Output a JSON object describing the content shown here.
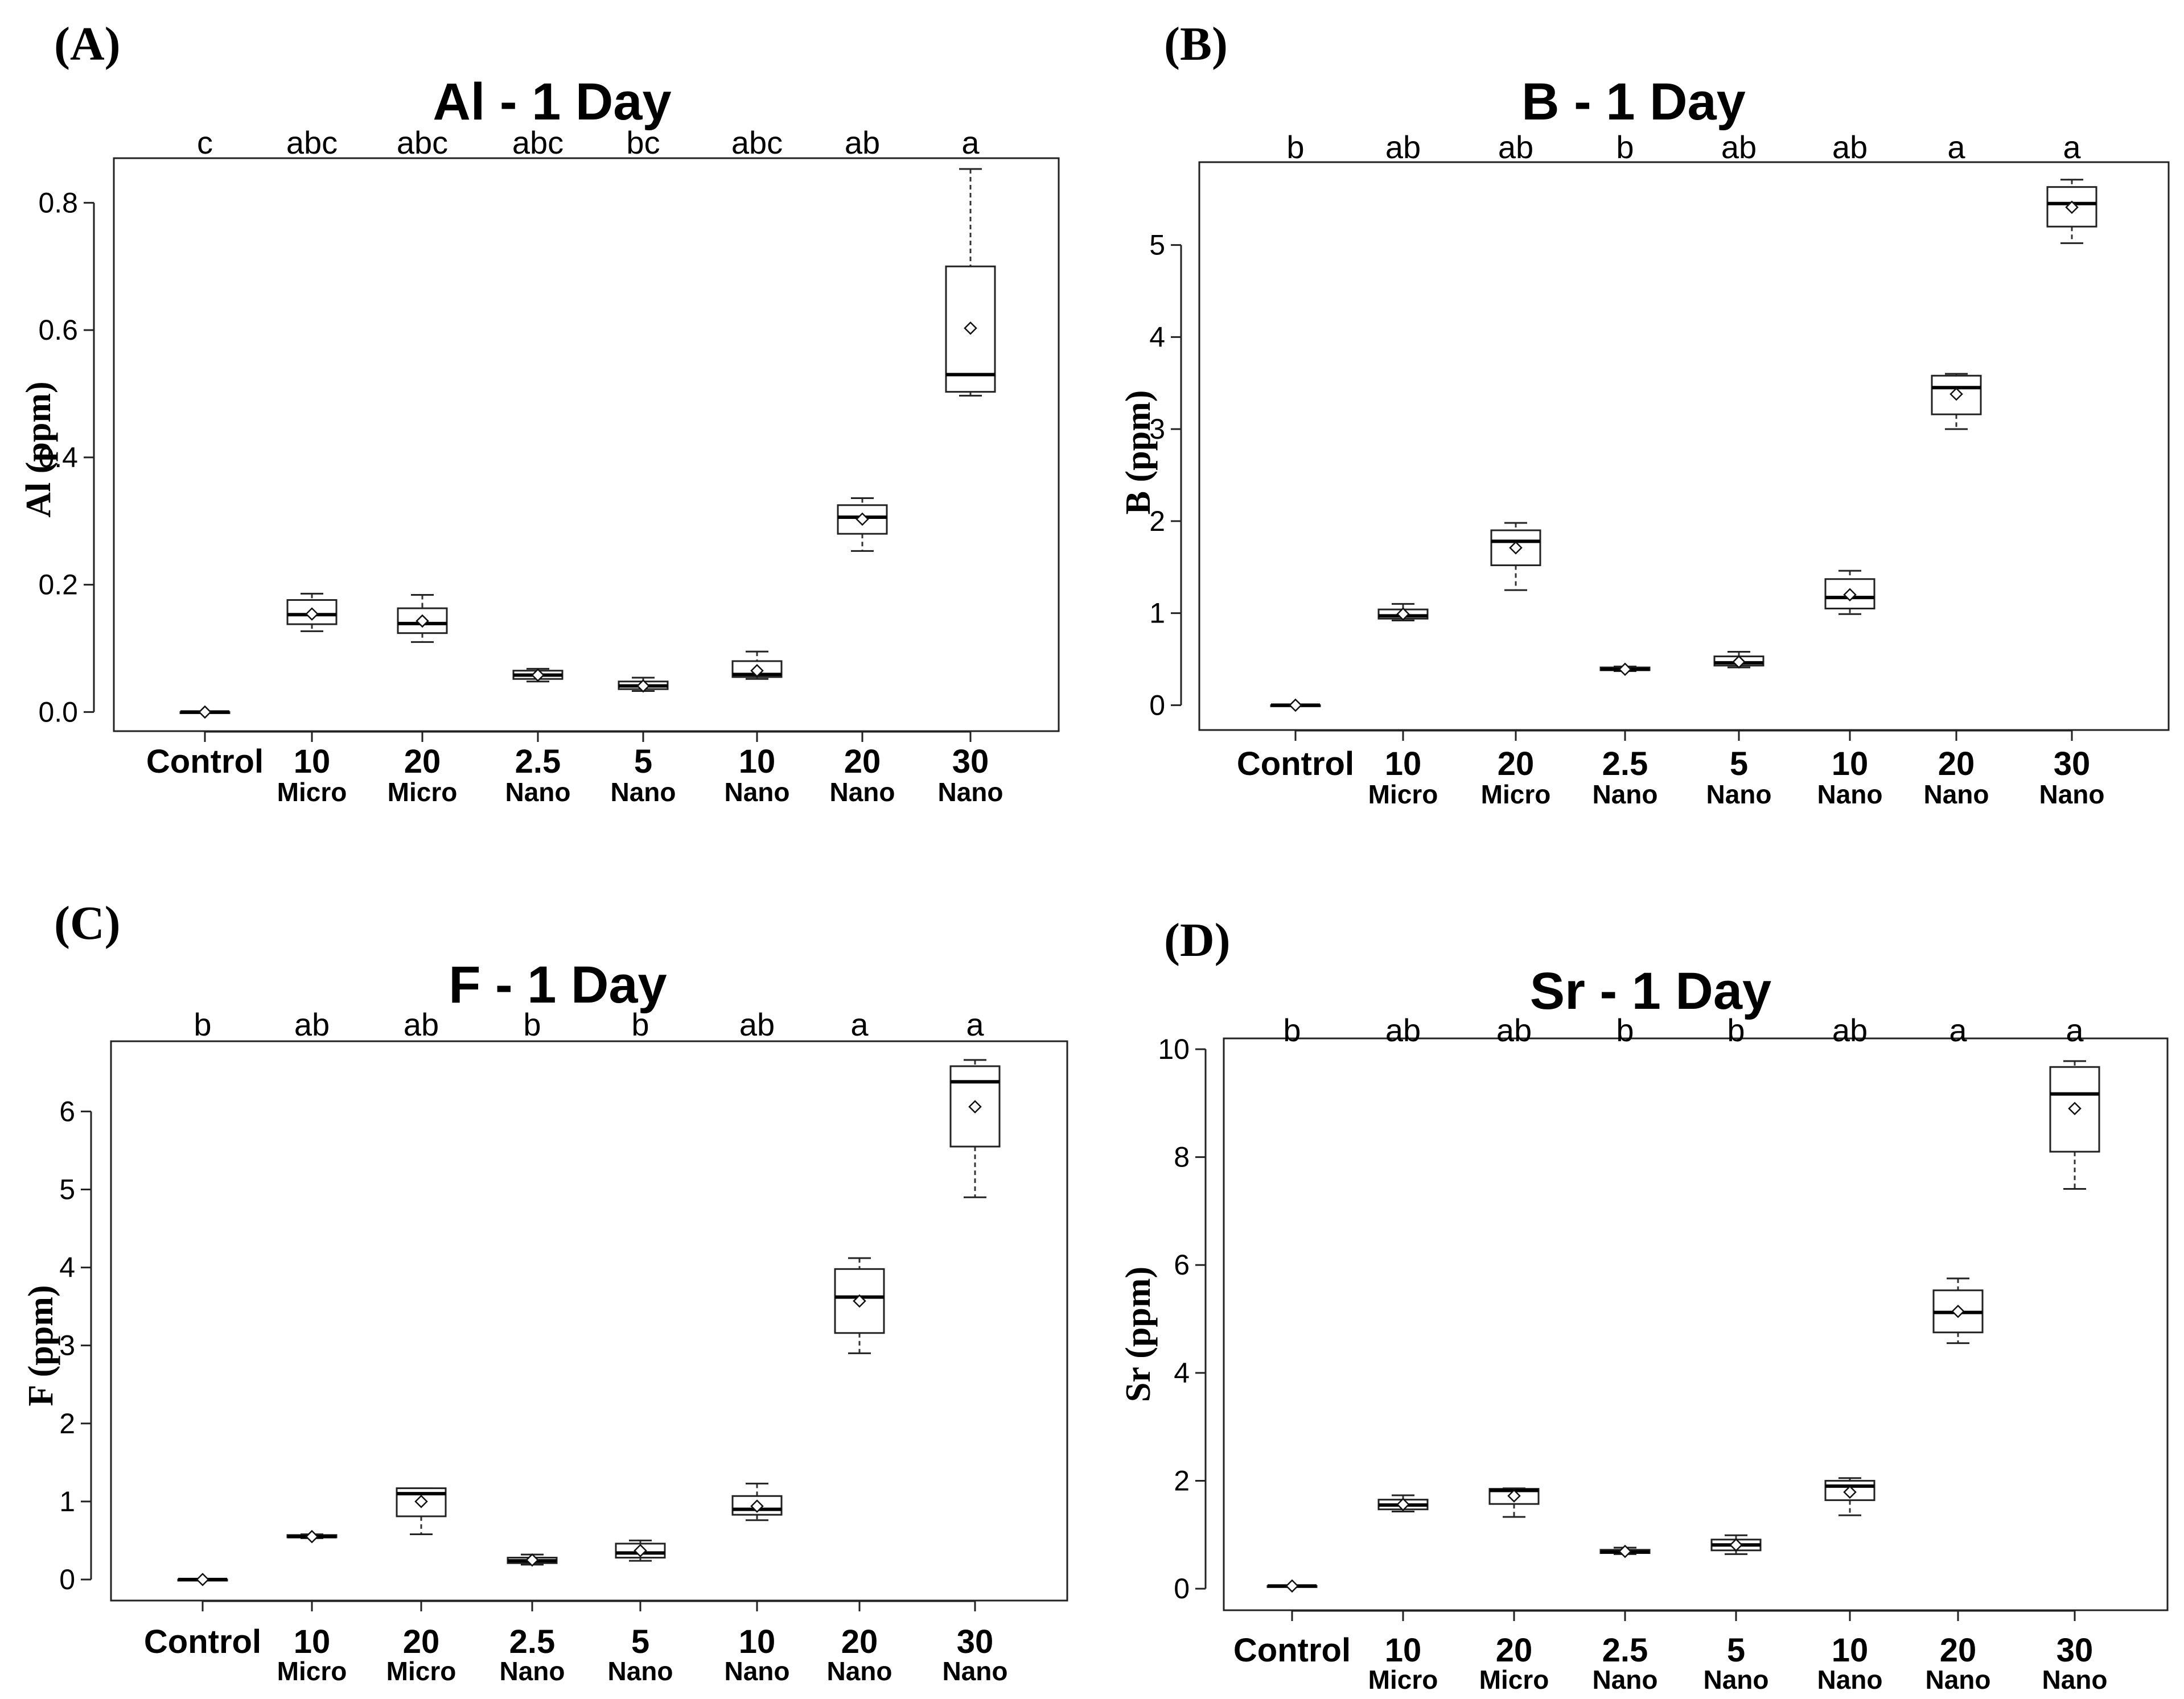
{
  "chart_data": [
    {
      "type": "box",
      "panel_label": "(A)",
      "title": "Al - 1 Day",
      "ylabel": "Al (ppm)",
      "ylim": [
        -0.03,
        0.87
      ],
      "yticks": [
        "0.0",
        "0.2",
        "0.4",
        "0.6",
        "0.8"
      ],
      "yticks_values": [
        0,
        0.2,
        0.4,
        0.6,
        0.8
      ],
      "groups": [
        {
          "line1": "Control",
          "line2": "",
          "letter": "c",
          "min": 0.0,
          "q1": 0.0,
          "median": 0.0,
          "q3": 0.0,
          "max": 0.0,
          "mean": 0.0
        },
        {
          "line1": "10",
          "line2": "Micro",
          "letter": "abc",
          "min": 0.127,
          "q1": 0.138,
          "median": 0.153,
          "q3": 0.176,
          "max": 0.186,
          "mean": 0.154
        },
        {
          "line1": "20",
          "line2": "Micro",
          "letter": "abc",
          "min": 0.11,
          "q1": 0.124,
          "median": 0.139,
          "q3": 0.163,
          "max": 0.184,
          "mean": 0.143
        },
        {
          "line1": "2.5",
          "line2": "Nano",
          "letter": "abc",
          "min": 0.048,
          "q1": 0.052,
          "median": 0.058,
          "q3": 0.065,
          "max": 0.068,
          "mean": 0.058
        },
        {
          "line1": "5",
          "line2": "Nano",
          "letter": "bc",
          "min": 0.033,
          "q1": 0.036,
          "median": 0.041,
          "q3": 0.048,
          "max": 0.054,
          "mean": 0.041
        },
        {
          "line1": "10",
          "line2": "Nano",
          "letter": "abc",
          "min": 0.052,
          "q1": 0.055,
          "median": 0.059,
          "q3": 0.08,
          "max": 0.095,
          "mean": 0.065
        },
        {
          "line1": "20",
          "line2": "Nano",
          "letter": "ab",
          "min": 0.253,
          "q1": 0.28,
          "median": 0.306,
          "q3": 0.325,
          "max": 0.336,
          "mean": 0.303
        },
        {
          "line1": "30",
          "line2": "Nano",
          "letter": "a",
          "min": 0.497,
          "q1": 0.503,
          "median": 0.53,
          "q3": 0.7,
          "max": 0.853,
          "mean": 0.603
        }
      ]
    },
    {
      "type": "box",
      "panel_label": "(B)",
      "title": "B - 1 Day",
      "ylabel": "B (ppm)",
      "ylim": [
        -0.27,
        5.9
      ],
      "yticks": [
        "0",
        "1",
        "2",
        "3",
        "4",
        "5"
      ],
      "yticks_values": [
        0,
        1,
        2,
        3,
        4,
        5
      ],
      "groups": [
        {
          "line1": "Control",
          "line2": "",
          "letter": "b",
          "min": 0.0,
          "q1": 0.0,
          "median": 0.0,
          "q3": 0.0,
          "max": 0.0,
          "mean": 0.0
        },
        {
          "line1": "10",
          "line2": "Micro",
          "letter": "ab",
          "min": 0.92,
          "q1": 0.94,
          "median": 0.97,
          "q3": 1.04,
          "max": 1.1,
          "mean": 0.99
        },
        {
          "line1": "20",
          "line2": "Micro",
          "letter": "ab",
          "min": 1.25,
          "q1": 1.52,
          "median": 1.78,
          "q3": 1.9,
          "max": 1.98,
          "mean": 1.71
        },
        {
          "line1": "2.5",
          "line2": "Nano",
          "letter": "b",
          "min": 0.37,
          "q1": 0.38,
          "median": 0.39,
          "q3": 0.41,
          "max": 0.42,
          "mean": 0.39
        },
        {
          "line1": "5",
          "line2": "Nano",
          "letter": "ab",
          "min": 0.41,
          "q1": 0.43,
          "median": 0.46,
          "q3": 0.53,
          "max": 0.58,
          "mean": 0.47
        },
        {
          "line1": "10",
          "line2": "Nano",
          "letter": "ab",
          "min": 0.99,
          "q1": 1.05,
          "median": 1.17,
          "q3": 1.37,
          "max": 1.46,
          "mean": 1.2
        },
        {
          "line1": "20",
          "line2": "Nano",
          "letter": "a",
          "min": 3.0,
          "q1": 3.16,
          "median": 3.45,
          "q3": 3.58,
          "max": 3.6,
          "mean": 3.38
        },
        {
          "line1": "30",
          "line2": "Nano",
          "letter": "a",
          "min": 5.02,
          "q1": 5.2,
          "median": 5.45,
          "q3": 5.63,
          "max": 5.71,
          "mean": 5.41
        }
      ]
    },
    {
      "type": "box",
      "panel_label": "(C)",
      "title": "F - 1 Day",
      "ylabel": "F (ppm)",
      "ylim": [
        -0.27,
        6.9
      ],
      "yticks": [
        "0",
        "1",
        "2",
        "3",
        "4",
        "5",
        "6"
      ],
      "yticks_values": [
        0,
        1,
        2,
        3,
        4,
        5,
        6
      ],
      "groups": [
        {
          "line1": "Control",
          "line2": "",
          "letter": "b",
          "min": 0.0,
          "q1": 0.0,
          "median": 0.0,
          "q3": 0.0,
          "max": 0.0,
          "mean": 0.0
        },
        {
          "line1": "10",
          "line2": "Micro",
          "letter": "ab",
          "min": 0.53,
          "q1": 0.54,
          "median": 0.55,
          "q3": 0.57,
          "max": 0.58,
          "mean": 0.55
        },
        {
          "line1": "20",
          "line2": "Micro",
          "letter": "ab",
          "min": 0.58,
          "q1": 0.81,
          "median": 1.1,
          "q3": 1.17,
          "max": 1.17,
          "mean": 1.0
        },
        {
          "line1": "2.5",
          "line2": "Nano",
          "letter": "b",
          "min": 0.19,
          "q1": 0.21,
          "median": 0.24,
          "q3": 0.28,
          "max": 0.32,
          "mean": 0.25
        },
        {
          "line1": "5",
          "line2": "Nano",
          "letter": "b",
          "min": 0.24,
          "q1": 0.28,
          "median": 0.34,
          "q3": 0.46,
          "max": 0.5,
          "mean": 0.37
        },
        {
          "line1": "10",
          "line2": "Nano",
          "letter": "ab",
          "min": 0.76,
          "q1": 0.83,
          "median": 0.9,
          "q3": 1.07,
          "max": 1.23,
          "mean": 0.94
        },
        {
          "line1": "20",
          "line2": "Nano",
          "letter": "a",
          "min": 2.9,
          "q1": 3.16,
          "median": 3.62,
          "q3": 3.98,
          "max": 4.12,
          "mean": 3.57
        },
        {
          "line1": "30",
          "line2": "Nano",
          "letter": "a",
          "min": 4.9,
          "q1": 5.55,
          "median": 6.38,
          "q3": 6.58,
          "max": 6.66,
          "mean": 6.06
        }
      ]
    },
    {
      "type": "box",
      "panel_label": "(D)",
      "title": "Sr - 1 Day",
      "ylabel": "Sr (ppm)",
      "ylim": [
        -0.4,
        10.2
      ],
      "yticks": [
        "0",
        "2",
        "4",
        "6",
        "8",
        "10"
      ],
      "yticks_values": [
        0,
        2,
        4,
        6,
        8,
        10
      ],
      "groups": [
        {
          "line1": "Control",
          "line2": "",
          "letter": "b",
          "min": 0.05,
          "q1": 0.05,
          "median": 0.05,
          "q3": 0.05,
          "max": 0.05,
          "mean": 0.05
        },
        {
          "line1": "10",
          "line2": "Micro",
          "letter": "ab",
          "min": 1.43,
          "q1": 1.47,
          "median": 1.55,
          "q3": 1.65,
          "max": 1.73,
          "mean": 1.56
        },
        {
          "line1": "20",
          "line2": "Micro",
          "letter": "ab",
          "min": 1.33,
          "q1": 1.57,
          "median": 1.82,
          "q3": 1.85,
          "max": 1.86,
          "mean": 1.72
        },
        {
          "line1": "2.5",
          "line2": "Nano",
          "letter": "b",
          "min": 0.64,
          "q1": 0.66,
          "median": 0.68,
          "q3": 0.72,
          "max": 0.76,
          "mean": 0.69
        },
        {
          "line1": "5",
          "line2": "Nano",
          "letter": "b",
          "min": 0.64,
          "q1": 0.71,
          "median": 0.81,
          "q3": 0.91,
          "max": 0.99,
          "mean": 0.81
        },
        {
          "line1": "10",
          "line2": "Nano",
          "letter": "ab",
          "min": 1.36,
          "q1": 1.64,
          "median": 1.9,
          "q3": 2.0,
          "max": 2.05,
          "mean": 1.79
        },
        {
          "line1": "20",
          "line2": "Nano",
          "letter": "a",
          "min": 4.55,
          "q1": 4.75,
          "median": 5.12,
          "q3": 5.53,
          "max": 5.75,
          "mean": 5.14
        },
        {
          "line1": "30",
          "line2": "Nano",
          "letter": "a",
          "min": 7.41,
          "q1": 8.1,
          "median": 9.17,
          "q3": 9.67,
          "max": 9.78,
          "mean": 8.9
        }
      ]
    }
  ]
}
